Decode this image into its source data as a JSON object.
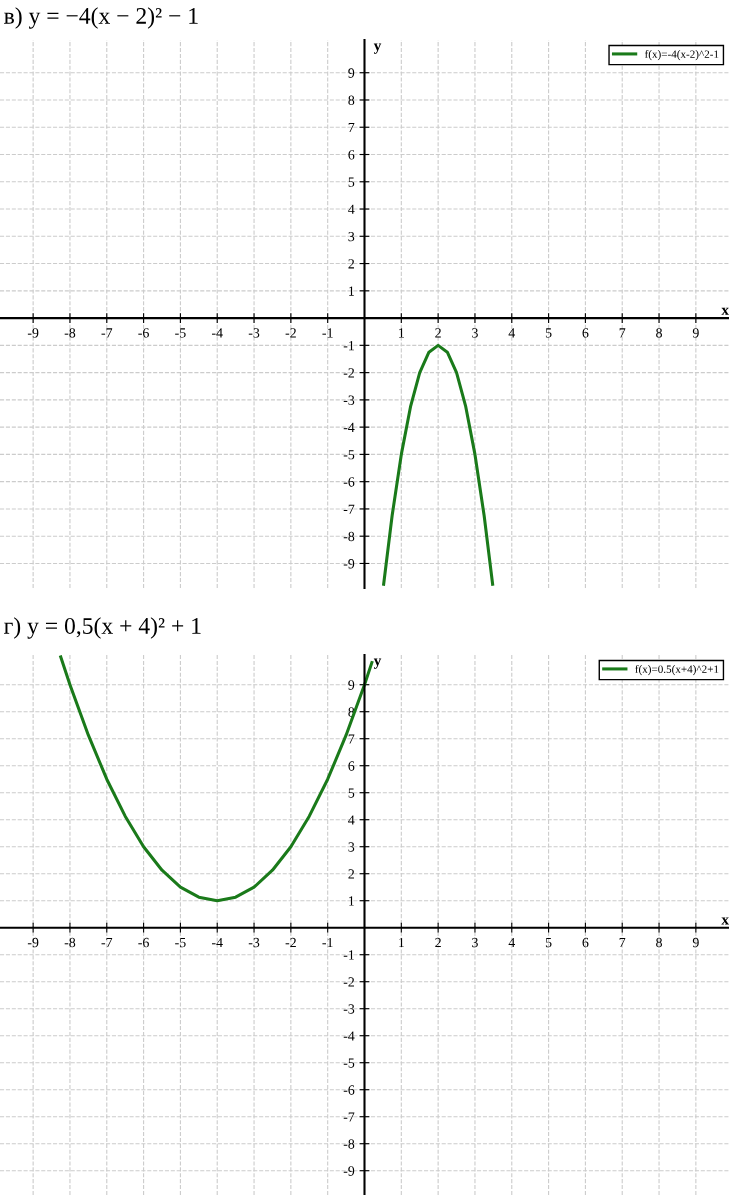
{
  "chart_data": [
    {
      "type": "line",
      "title": "в) y = −4(x − 2)² − 1",
      "xlabel": "x",
      "ylabel": "y",
      "xlim": [
        -9.9,
        9.9
      ],
      "ylim": [
        -9.9,
        10.2
      ],
      "xticks": [
        -9,
        -8,
        -7,
        -6,
        -5,
        -4,
        -3,
        -2,
        -1,
        1,
        2,
        3,
        4,
        5,
        6,
        7,
        8,
        9
      ],
      "yticks": [
        -9,
        -8,
        -7,
        -6,
        -5,
        -4,
        -3,
        -2,
        -1,
        1,
        2,
        3,
        4,
        5,
        6,
        7,
        8,
        9
      ],
      "grid": true,
      "legend": "top right",
      "series": [
        {
          "name": "f(x)=-4(x-2)^2-1",
          "color": "#1a7a1a",
          "x": [
            0.52,
            0.75,
            1,
            1.25,
            1.5,
            1.75,
            2,
            2.25,
            2.5,
            2.75,
            3,
            3.25,
            3.48
          ],
          "values": [
            -9.76,
            -7.25,
            -5,
            -3.25,
            -2,
            -1.25,
            -1,
            -1.25,
            -2,
            -3.25,
            -5,
            -7.25,
            -9.76
          ]
        }
      ]
    },
    {
      "type": "line",
      "title": "г) y = 0,5(x + 4)² + 1",
      "xlabel": "x",
      "ylabel": "y",
      "xlim": [
        -9.9,
        9.9
      ],
      "ylim": [
        -9.9,
        10.1
      ],
      "xticks": [
        -9,
        -8,
        -7,
        -6,
        -5,
        -4,
        -3,
        -2,
        -1,
        1,
        2,
        3,
        4,
        5,
        6,
        7,
        8,
        9
      ],
      "yticks": [
        -9,
        -8,
        -7,
        -6,
        -5,
        -4,
        -3,
        -2,
        -1,
        1,
        2,
        3,
        4,
        5,
        6,
        7,
        8,
        9
      ],
      "grid": true,
      "legend": "top right",
      "series": [
        {
          "name": "f(x)=0.5(x+4)^2+1",
          "color": "#1a7a1a",
          "x": [
            -8.25,
            -8,
            -7.5,
            -7,
            -6.5,
            -6,
            -5.5,
            -5,
            -4.5,
            -4,
            -3.5,
            -3,
            -2.5,
            -2,
            -1.5,
            -1,
            -0.5,
            0,
            0.2
          ],
          "values": [
            10.03,
            9,
            7.13,
            5.5,
            4.13,
            3,
            2.13,
            1.5,
            1.13,
            1,
            1.13,
            1.5,
            2.13,
            3,
            4.13,
            5.5,
            7.13,
            9,
            9.82
          ]
        }
      ]
    }
  ]
}
